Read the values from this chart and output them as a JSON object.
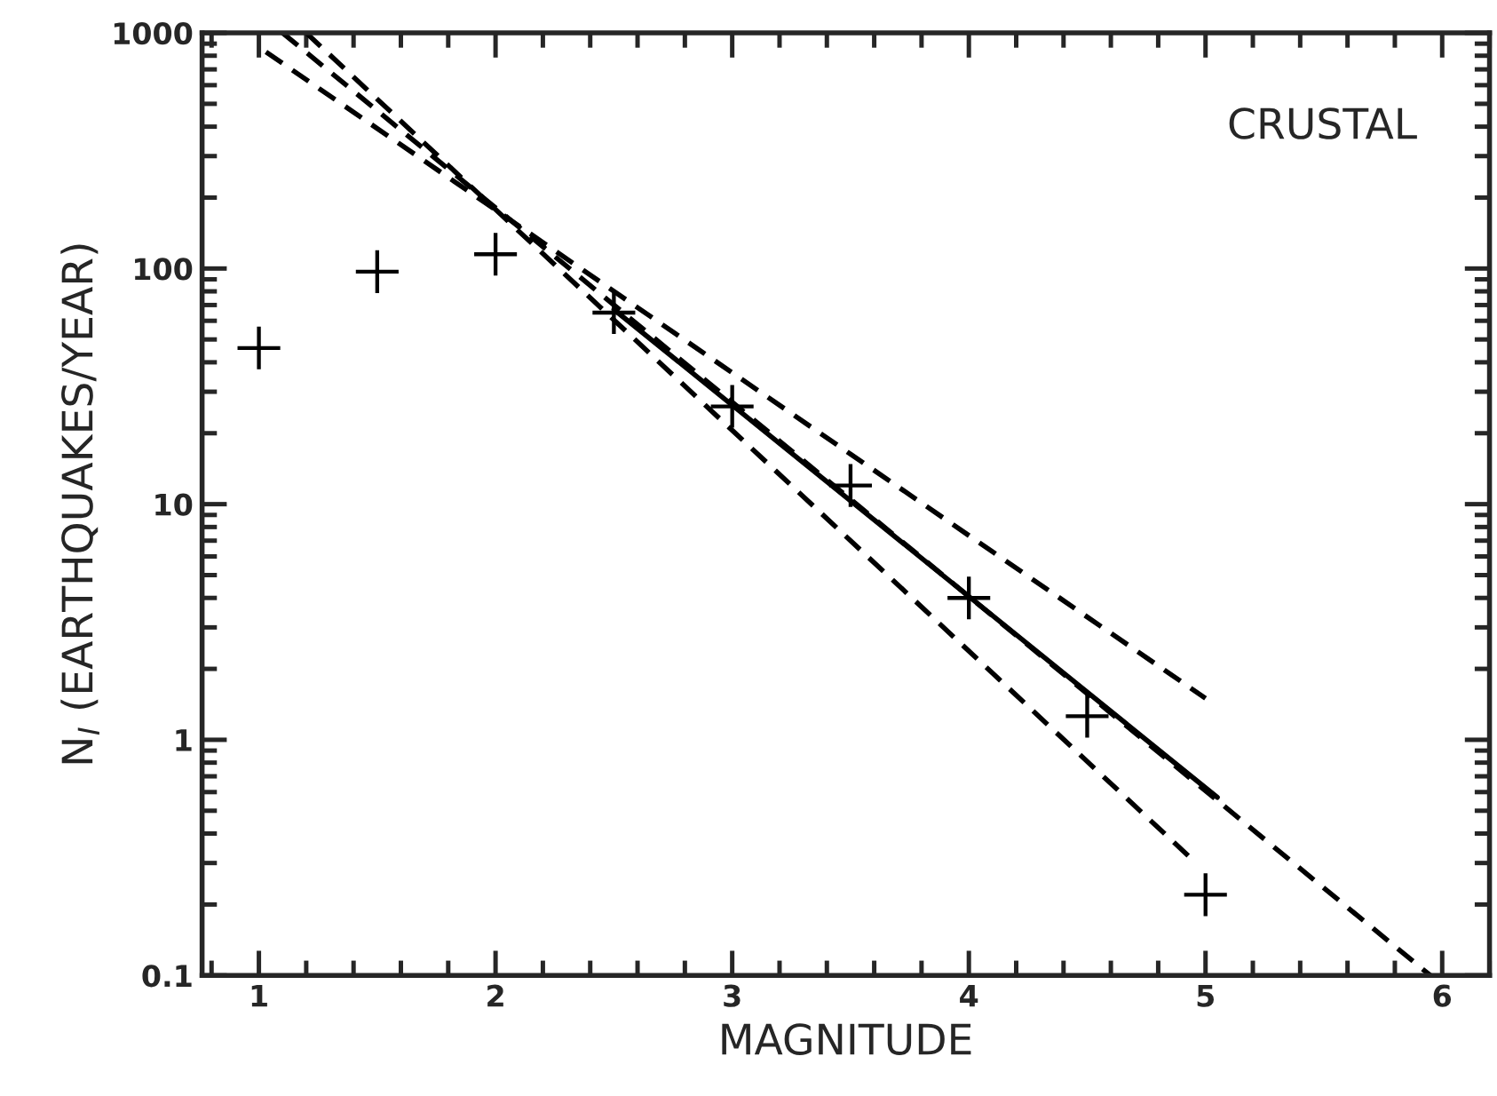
{
  "chart_data": {
    "type": "scatter",
    "xlabel": "MAGNITUDE",
    "ylabel": "N$_{I}$ (EARTHQUAKES/YEAR)",
    "log": "y",
    "grid": false,
    "legend": false,
    "xlim": [
      0.76,
      6.2
    ],
    "xticks": [
      1,
      2,
      3,
      4,
      5,
      6
    ],
    "ylim": [
      0.1,
      1000
    ],
    "yticks": [
      0.1,
      1,
      10,
      100,
      1000
    ],
    "annotations": [
      "CRUSTAL"
    ],
    "series": [
      {
        "type": "scatter",
        "color": "#000000",
        "marker": "cross",
        "x": [
          1,
          1.5,
          2,
          2.5,
          3,
          3.5,
          4,
          4.5,
          5
        ],
        "values": [
          46,
          97,
          115,
          65,
          26,
          12,
          4.0,
          1.26,
          0.22
        ]
      },
      {
        "type": "line",
        "color": "#000000",
        "line_style": "dashed",
        "x": [
          1.03,
          5.0
        ],
        "values": [
          830,
          1.5
        ]
      },
      {
        "type": "line",
        "color": "#000000",
        "line_style": "dashed",
        "x": [
          1.1,
          5.95
        ],
        "values": [
          1000,
          0.1
        ]
      },
      {
        "type": "line",
        "color": "#000000",
        "line_style": "dashed",
        "x": [
          1.2,
          4.96
        ],
        "values": [
          1000,
          0.3
        ]
      },
      {
        "type": "line",
        "color": "#000000",
        "line_style": "solid",
        "x": [
          2.5,
          5.05
        ],
        "values": [
          67,
          0.57
        ]
      }
    ]
  }
}
